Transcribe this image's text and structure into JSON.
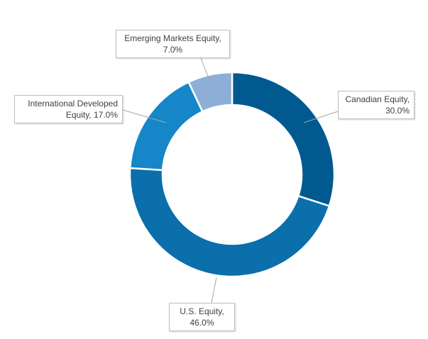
{
  "chart_data": {
    "type": "pie",
    "variant": "donut",
    "start": "12 o'clock, clockwise",
    "slices": [
      {
        "label": "Canadian Equity",
        "value": 30.0,
        "value_label": "30.0%",
        "color": "#005a8f"
      },
      {
        "label": "U.S. Equity",
        "value": 46.0,
        "value_label": "46.0%",
        "color": "#0a6fab"
      },
      {
        "label": "International Developed Equity",
        "value": 17.0,
        "value_label": "17.0%",
        "color": "#1586c7"
      },
      {
        "label": "Emerging Markets Equity",
        "value": 7.0,
        "value_label": "7.0%",
        "color": "#8daed6"
      }
    ],
    "legend": "none (callout data labels)"
  },
  "callouts": {
    "canadian": {
      "line1": "Canadian Equity,",
      "line2": "30.0%"
    },
    "us": {
      "line1": "U.S. Equity,",
      "line2": "46.0%"
    },
    "intl": {
      "line1": "International Developed",
      "line2": "Equity, 17.0%"
    },
    "em": {
      "line1": "Emerging Markets Equity,",
      "line2": "7.0%"
    }
  }
}
